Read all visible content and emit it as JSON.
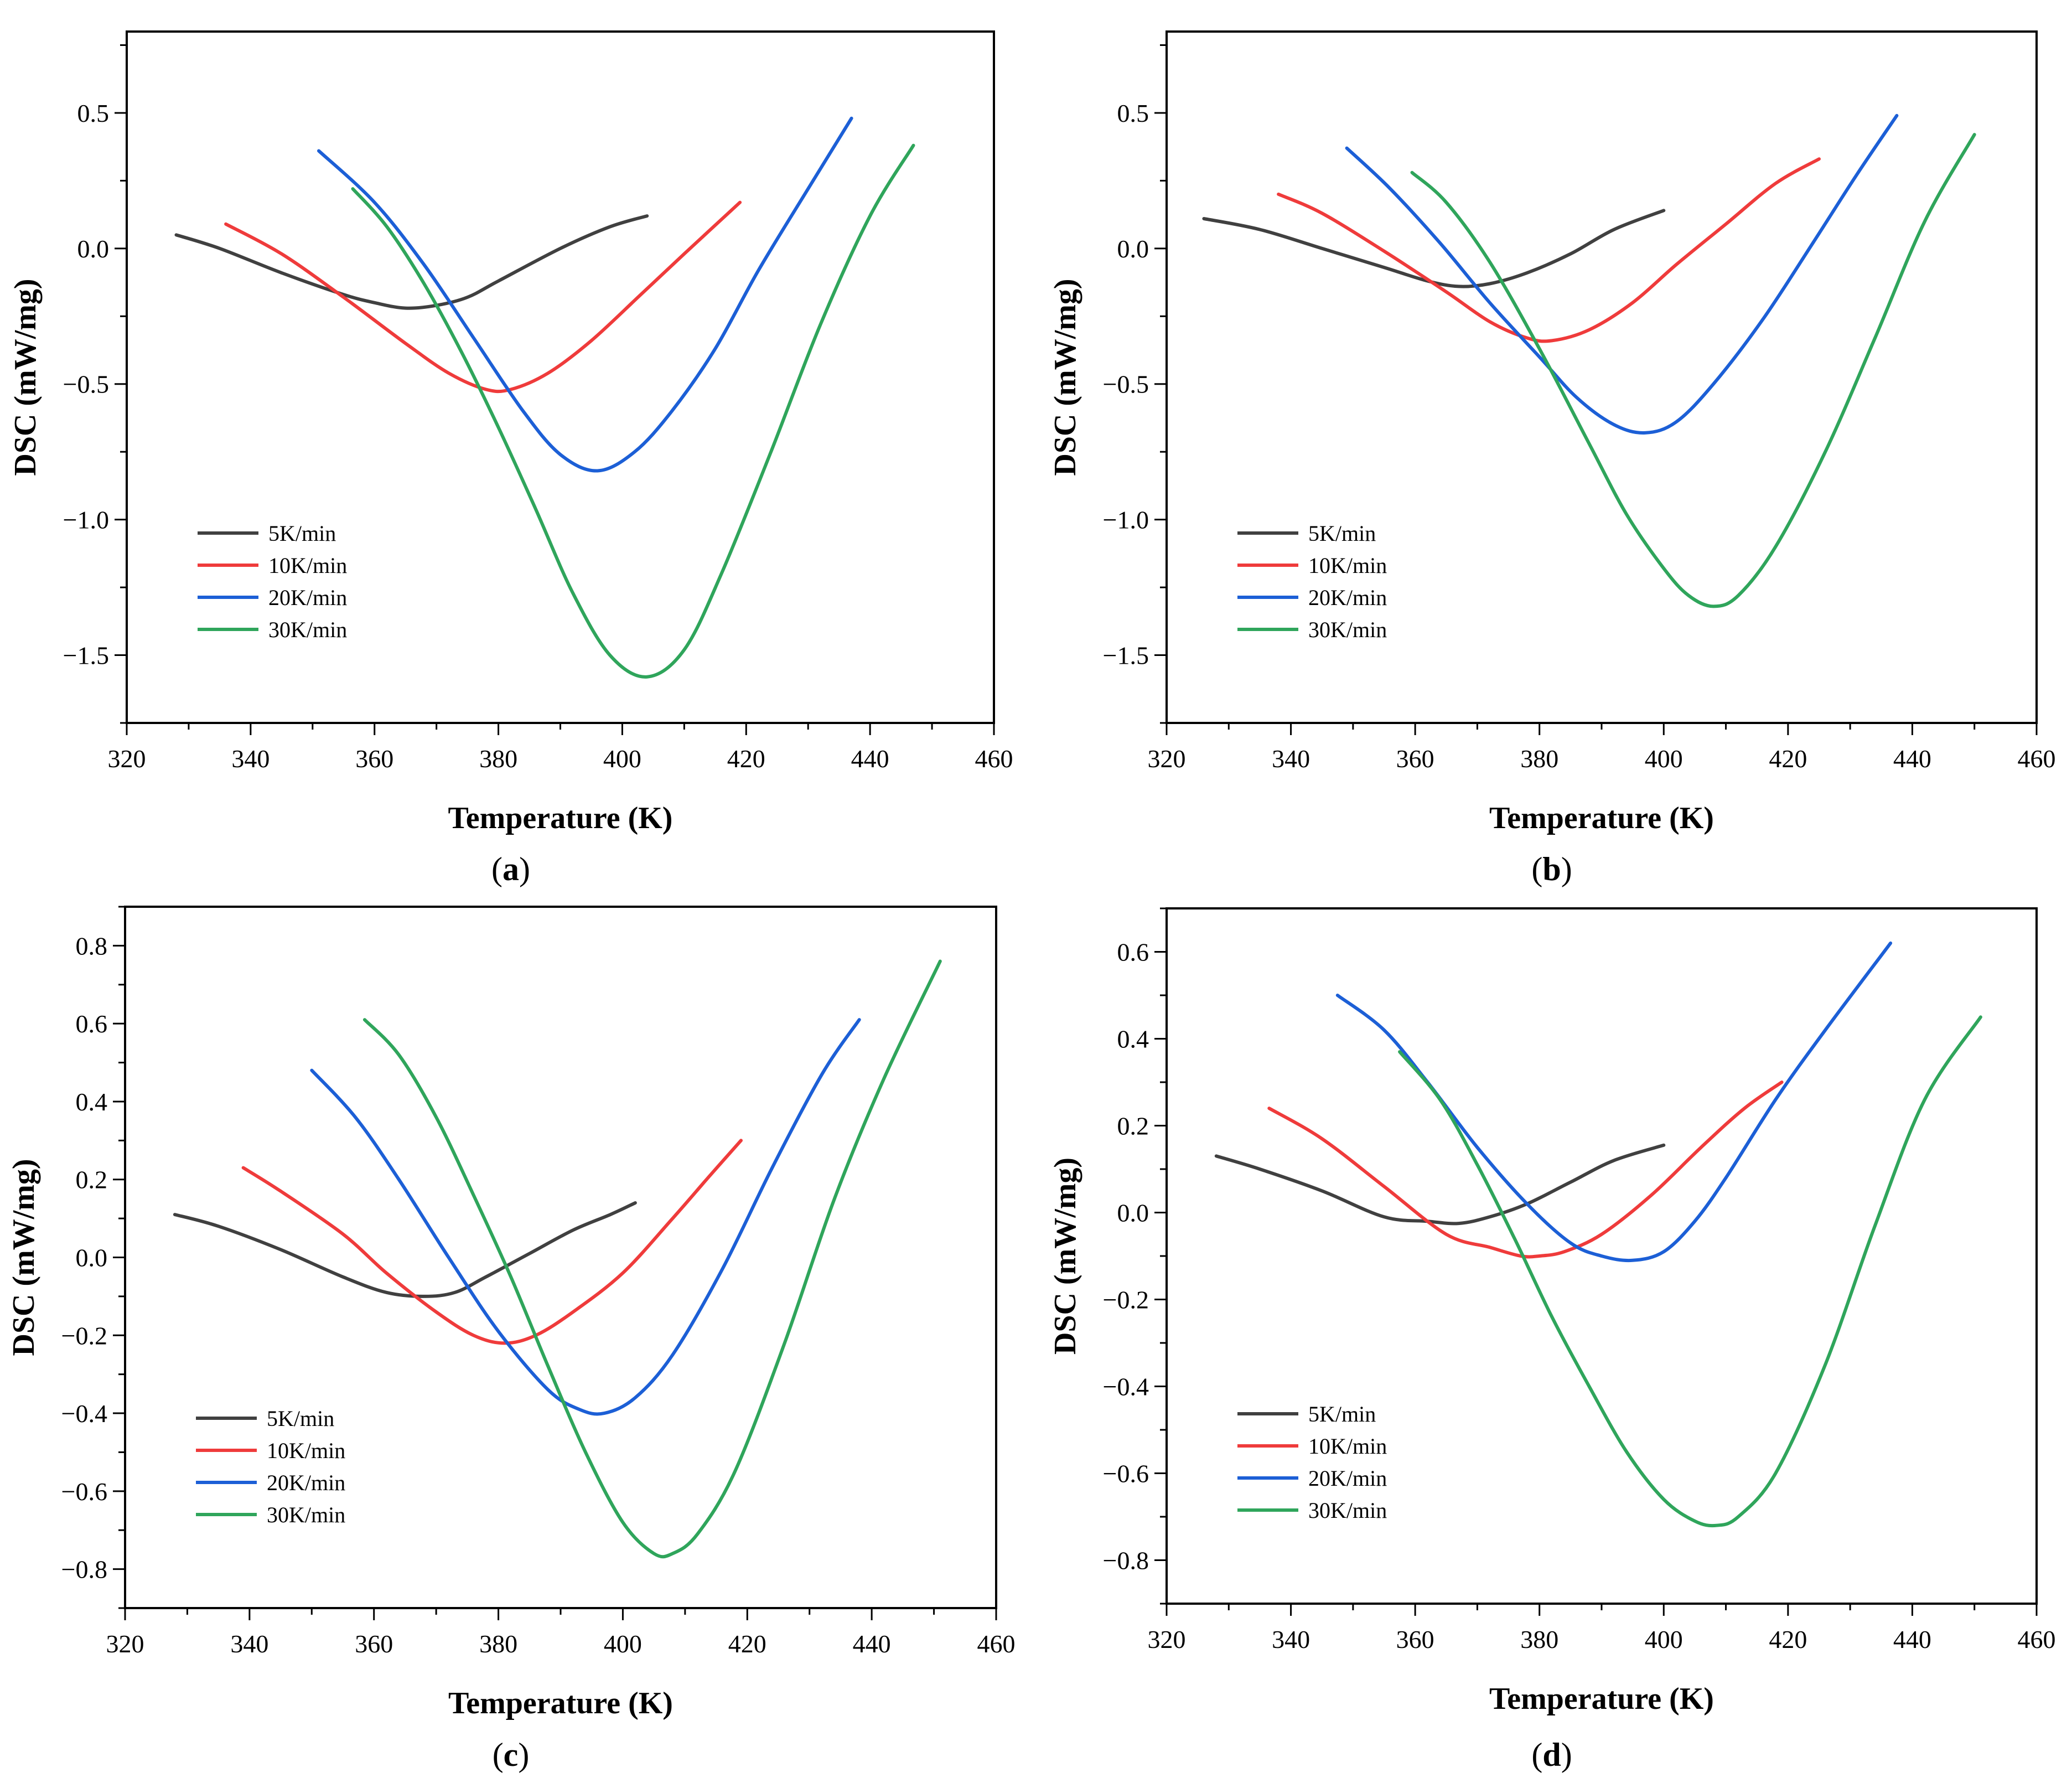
{
  "chart_data": [
    {
      "type": "line",
      "panel_label": "a",
      "xlabel": "Temperature (K)",
      "ylabel": "DSC (mW/mg)",
      "xlim": [
        320,
        460
      ],
      "ylim": [
        -1.75,
        0.8
      ],
      "xticks": [
        "320",
        "340",
        "360",
        "380",
        "400",
        "420",
        "440",
        "460"
      ],
      "yticks": [
        "0.5",
        "0.0",
        "−0.5",
        "−1.0",
        "−1.5"
      ],
      "ytick_values": [
        0.5,
        0.0,
        -0.5,
        -1.0,
        -1.5
      ],
      "grid": false,
      "legend_position": "lower-left",
      "series": [
        {
          "name": "5K/min",
          "color": "#404040",
          "x": [
            328,
            335,
            345,
            355,
            360,
            365,
            370,
            375,
            380,
            390,
            398,
            404
          ],
          "y": [
            0.05,
            0.0,
            -0.09,
            -0.17,
            -0.2,
            -0.22,
            -0.21,
            -0.18,
            -0.12,
            0.0,
            0.08,
            0.12
          ]
        },
        {
          "name": "10K/min",
          "color": "#ef3b3b",
          "x": [
            336,
            345,
            355,
            365,
            372,
            378,
            382,
            388,
            395,
            403,
            410,
            419
          ],
          "y": [
            0.09,
            -0.02,
            -0.18,
            -0.35,
            -0.46,
            -0.52,
            -0.52,
            -0.46,
            -0.34,
            -0.17,
            -0.02,
            0.17
          ]
        },
        {
          "name": "20K/min",
          "color": "#1c5fd6",
          "x": [
            351,
            360,
            368,
            376,
            384,
            390,
            396,
            402,
            408,
            415,
            422,
            430,
            437
          ],
          "y": [
            0.36,
            0.17,
            -0.06,
            -0.33,
            -0.6,
            -0.76,
            -0.82,
            -0.75,
            -0.6,
            -0.37,
            -0.08,
            0.22,
            0.48
          ]
        },
        {
          "name": "30K/min",
          "color": "#2fa55b",
          "x": [
            356.5,
            362,
            368,
            374,
            380,
            386,
            392,
            398,
            404,
            410,
            416,
            424,
            432,
            440,
            447
          ],
          "y": [
            0.22,
            0.08,
            -0.13,
            -0.38,
            -0.66,
            -0.96,
            -1.27,
            -1.5,
            -1.58,
            -1.48,
            -1.2,
            -0.75,
            -0.28,
            0.12,
            0.38
          ]
        }
      ]
    },
    {
      "type": "line",
      "panel_label": "b",
      "xlabel": "Temperature (K)",
      "ylabel": "DSC (mW/mg)",
      "xlim": [
        320,
        460
      ],
      "ylim": [
        -1.75,
        0.8
      ],
      "xticks": [
        "320",
        "340",
        "360",
        "380",
        "400",
        "420",
        "440",
        "460"
      ],
      "yticks": [
        "0.5",
        "0.0",
        "−0.5",
        "−1.0",
        "−1.5"
      ],
      "ytick_values": [
        0.5,
        0.0,
        -0.5,
        -1.0,
        -1.5
      ],
      "grid": false,
      "legend_position": "lower-left",
      "series": [
        {
          "name": "5K/min",
          "color": "#404040",
          "x": [
            326,
            335,
            345,
            355,
            362,
            367,
            372,
            378,
            385,
            392,
            400
          ],
          "y": [
            0.11,
            0.07,
            0.0,
            -0.07,
            -0.12,
            -0.14,
            -0.13,
            -0.09,
            -0.02,
            0.07,
            0.14
          ]
        },
        {
          "name": "10K/min",
          "color": "#ef3b3b",
          "x": [
            338,
            345,
            355,
            365,
            372,
            378,
            382,
            388,
            395,
            402,
            410,
            418,
            425
          ],
          "y": [
            0.2,
            0.13,
            -0.01,
            -0.16,
            -0.27,
            -0.33,
            -0.34,
            -0.3,
            -0.2,
            -0.06,
            0.09,
            0.24,
            0.33
          ]
        },
        {
          "name": "20K/min",
          "color": "#1c5fd6",
          "x": [
            349,
            356,
            364,
            372,
            380,
            386,
            392,
            397,
            402,
            408,
            416,
            424,
            431,
            437.5
          ],
          "y": [
            0.37,
            0.22,
            0.02,
            -0.2,
            -0.4,
            -0.55,
            -0.65,
            -0.68,
            -0.64,
            -0.5,
            -0.26,
            0.02,
            0.27,
            0.49
          ]
        },
        {
          "name": "30K/min",
          "color": "#2fa55b",
          "x": [
            359.5,
            365,
            372,
            380,
            388,
            394,
            400,
            404,
            408,
            412,
            418,
            426,
            434,
            442,
            450
          ],
          "y": [
            0.28,
            0.17,
            -0.05,
            -0.37,
            -0.72,
            -0.98,
            -1.18,
            -1.28,
            -1.32,
            -1.28,
            -1.1,
            -0.75,
            -0.33,
            0.1,
            0.42
          ]
        }
      ]
    },
    {
      "type": "line",
      "panel_label": "c",
      "xlabel": "Temperature (K)",
      "ylabel": "DSC (mW/mg)",
      "xlim": [
        320,
        460
      ],
      "ylim": [
        -0.9,
        0.9
      ],
      "xticks": [
        "320",
        "340",
        "360",
        "380",
        "400",
        "420",
        "440",
        "460"
      ],
      "yticks": [
        "0.8",
        "0.6",
        "0.4",
        "0.2",
        "0.0",
        "−0.2",
        "−0.4",
        "−0.6",
        "−0.8"
      ],
      "ytick_values": [
        0.8,
        0.6,
        0.4,
        0.2,
        0.0,
        -0.2,
        -0.4,
        -0.6,
        -0.8
      ],
      "grid": false,
      "legend_position": "lower-left",
      "series": [
        {
          "name": "5K/min",
          "color": "#404040",
          "x": [
            328,
            335,
            345,
            355,
            362,
            368,
            373,
            378,
            385,
            392,
            398,
            402
          ],
          "y": [
            0.11,
            0.08,
            0.02,
            -0.05,
            -0.09,
            -0.1,
            -0.09,
            -0.05,
            0.01,
            0.07,
            0.11,
            0.14
          ]
        },
        {
          "name": "10K/min",
          "color": "#ef3b3b",
          "x": [
            339,
            345,
            355,
            362,
            370,
            376,
            381,
            386,
            392,
            400,
            408,
            414,
            419
          ],
          "y": [
            0.23,
            0.17,
            0.06,
            -0.04,
            -0.14,
            -0.2,
            -0.22,
            -0.2,
            -0.14,
            -0.04,
            0.1,
            0.21,
            0.3
          ]
        },
        {
          "name": "20K/min",
          "color": "#1c5fd6",
          "x": [
            350,
            357,
            364,
            372,
            380,
            388,
            393,
            397,
            402,
            408,
            416,
            424,
            432,
            438
          ],
          "y": [
            0.48,
            0.36,
            0.2,
            0.0,
            -0.19,
            -0.34,
            -0.39,
            -0.4,
            -0.36,
            -0.25,
            -0.03,
            0.23,
            0.47,
            0.61
          ]
        },
        {
          "name": "30K/min",
          "color": "#2fa55b",
          "x": [
            358.5,
            364,
            370,
            376,
            382,
            388,
            394,
            400,
            405,
            408,
            412,
            418,
            426,
            434,
            442,
            451
          ],
          "y": [
            0.61,
            0.52,
            0.36,
            0.16,
            -0.05,
            -0.28,
            -0.5,
            -0.68,
            -0.76,
            -0.76,
            -0.71,
            -0.55,
            -0.22,
            0.15,
            0.46,
            0.76
          ]
        }
      ]
    },
    {
      "type": "line",
      "panel_label": "d",
      "xlabel": "Temperature (K)",
      "ylabel": "DSC (mW/mg)",
      "xlim": [
        320,
        460
      ],
      "ylim": [
        -0.9,
        0.7
      ],
      "xticks": [
        "320",
        "340",
        "360",
        "380",
        "400",
        "420",
        "440",
        "460"
      ],
      "yticks": [
        "0.6",
        "0.4",
        "0.2",
        "0.0",
        "−0.2",
        "−0.4",
        "−0.6",
        "−0.8"
      ],
      "ytick_values": [
        0.6,
        0.4,
        0.2,
        0.0,
        -0.2,
        -0.4,
        -0.6,
        -0.8
      ],
      "grid": false,
      "legend_position": "lower-left",
      "series": [
        {
          "name": "5K/min",
          "color": "#404040",
          "x": [
            328,
            335,
            345,
            355,
            362,
            367,
            372,
            378,
            385,
            392,
            400
          ],
          "y": [
            0.13,
            0.1,
            0.05,
            -0.01,
            -0.02,
            -0.025,
            -0.01,
            0.02,
            0.07,
            0.12,
            0.155
          ]
        },
        {
          "name": "10K/min",
          "color": "#ef3b3b",
          "x": [
            336.5,
            345,
            355,
            365,
            372,
            377,
            380,
            384,
            390,
            398,
            406,
            413,
            419
          ],
          "y": [
            0.24,
            0.17,
            0.06,
            -0.05,
            -0.08,
            -0.1,
            -0.1,
            -0.09,
            -0.05,
            0.04,
            0.15,
            0.24,
            0.3
          ]
        },
        {
          "name": "20K/min",
          "color": "#1c5fd6",
          "x": [
            347.5,
            355,
            362,
            370,
            378,
            385,
            390,
            395,
            400,
            405,
            410,
            418,
            426,
            436.5
          ],
          "y": [
            0.5,
            0.42,
            0.3,
            0.15,
            0.02,
            -0.07,
            -0.1,
            -0.11,
            -0.09,
            -0.02,
            0.08,
            0.26,
            0.42,
            0.62
          ]
        },
        {
          "name": "30K/min",
          "color": "#2fa55b",
          "x": [
            357.5,
            364,
            370,
            376,
            382,
            388,
            394,
            400,
            405,
            408.5,
            412,
            418,
            426,
            434,
            442,
            451
          ],
          "y": [
            0.37,
            0.26,
            0.11,
            -0.06,
            -0.24,
            -0.4,
            -0.55,
            -0.66,
            -0.71,
            -0.72,
            -0.7,
            -0.6,
            -0.35,
            -0.03,
            0.26,
            0.45
          ]
        }
      ]
    }
  ]
}
